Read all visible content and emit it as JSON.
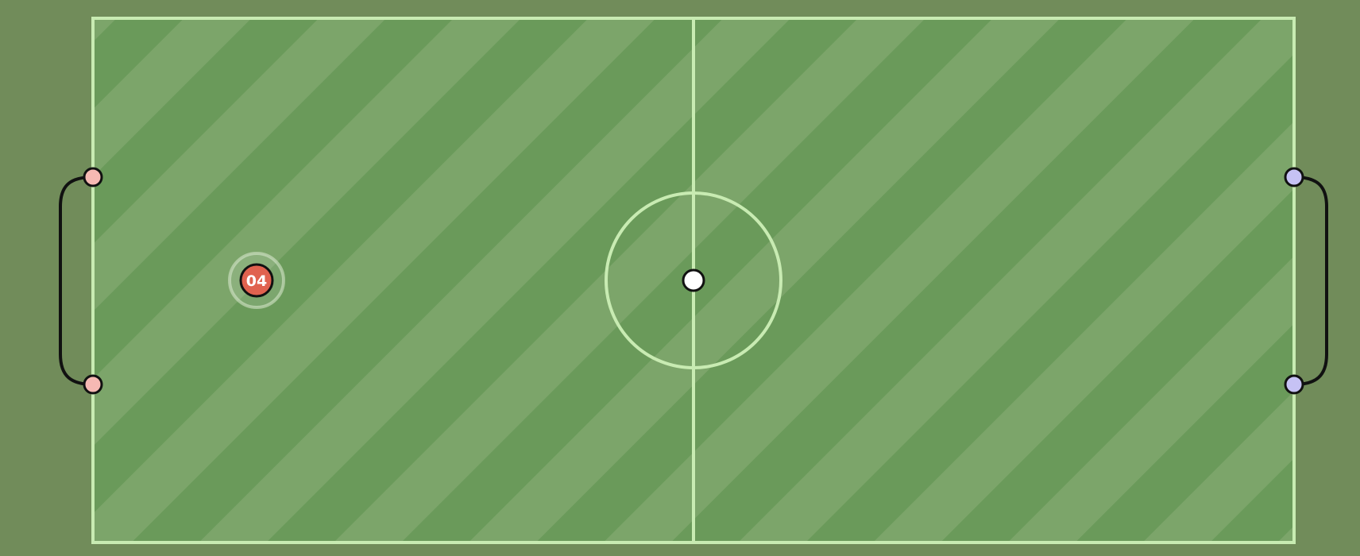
{
  "game": {
    "colors": {
      "background": "#718c5a",
      "pitch_dark": "#6a9a5a",
      "pitch_light": "#7ca56a",
      "pitch_lines": "#c8ebb2",
      "red_team": "#e0624f",
      "red_post": "#f6b9b3",
      "blue_post": "#c6c2f4",
      "ball": "#ffffff",
      "goal_net": "#111111"
    },
    "red_player": {
      "label": "04",
      "icon": "player-disc-icon"
    },
    "ball": {
      "icon": "ball-icon"
    }
  }
}
